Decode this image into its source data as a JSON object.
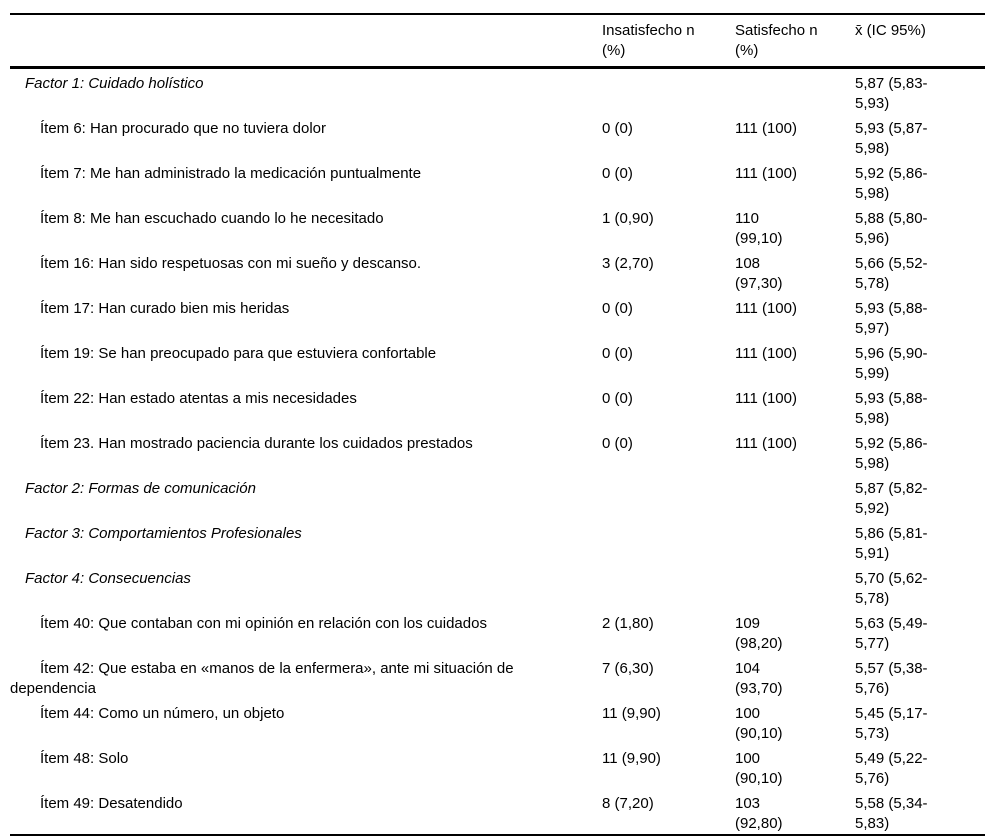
{
  "colors": {
    "background": "#ffffff",
    "text": "#000000",
    "rule": "#000000"
  },
  "table": {
    "headers": {
      "item": "",
      "insatisfecho": "Insatisfecho n\n(%)",
      "satisfecho": "Satisfecho n\n(%)",
      "media": "x̄ (IC 95%)"
    },
    "rows": [
      {
        "type": "factor",
        "label": "Factor 1: Cuidado holístico",
        "insatisfecho": "",
        "satisfecho": "",
        "media": "5,87 (5,83-\n5,93)"
      },
      {
        "type": "item",
        "label": "Ítem 6: Han procurado que no tuviera dolor",
        "insatisfecho": "0 (0)",
        "satisfecho": "111 (100)",
        "media": "5,93 (5,87-\n5,98)"
      },
      {
        "type": "item",
        "label": "Ítem 7: Me han administrado la medicación puntualmente",
        "insatisfecho": "0 (0)",
        "satisfecho": "111 (100)",
        "media": "5,92 (5,86-\n5,98)"
      },
      {
        "type": "item",
        "label": "Ítem 8: Me han escuchado cuando lo he necesitado",
        "insatisfecho": "1 (0,90)",
        "satisfecho": "110\n(99,10)",
        "media": "5,88 (5,80-\n5,96)"
      },
      {
        "type": "item",
        "label": "Ítem 16: Han sido respetuosas con mi sueño y descanso.",
        "insatisfecho": "3 (2,70)",
        "satisfecho": "108\n(97,30)",
        "media": "5,66 (5,52-\n5,78)"
      },
      {
        "type": "item",
        "label": "Ítem 17: Han curado bien mis heridas",
        "insatisfecho": "0 (0)",
        "satisfecho": "111 (100)",
        "media": "5,93 (5,88-\n5,97)"
      },
      {
        "type": "item",
        "label": "Ítem 19: Se han preocupado para que estuviera confortable",
        "insatisfecho": "0 (0)",
        "satisfecho": "111 (100)",
        "media": "5,96 (5,90-\n5,99)"
      },
      {
        "type": "item",
        "label": "Ítem 22: Han estado atentas a mis necesidades",
        "insatisfecho": "0 (0)",
        "satisfecho": "111 (100)",
        "media": "5,93 (5,88-\n5,98)"
      },
      {
        "type": "item",
        "label": "Ítem 23. Han mostrado paciencia durante los cuidados prestados",
        "insatisfecho": "0 (0)",
        "satisfecho": "111 (100)",
        "media": "5,92 (5,86-\n5,98)"
      },
      {
        "type": "factor",
        "label": "Factor 2: Formas de comunicación",
        "insatisfecho": "",
        "satisfecho": "",
        "media": "5,87 (5,82-\n5,92)"
      },
      {
        "type": "factor",
        "label": "Factor 3: Comportamientos Profesionales",
        "insatisfecho": "",
        "satisfecho": "",
        "media": "5,86 (5,81-\n5,91)"
      },
      {
        "type": "factor",
        "label": "Factor 4: Consecuencias",
        "insatisfecho": "",
        "satisfecho": "",
        "media": "5,70 (5,62-\n5,78)"
      },
      {
        "type": "item",
        "label": "Ítem 40: Que contaban con mi opinión en relación con los cuidados",
        "insatisfecho": "2 (1,80)",
        "satisfecho": "109\n(98,20)",
        "media": "5,63 (5,49-\n5,77)"
      },
      {
        "type": "item",
        "label": "Ítem 42: Que estaba en «manos de la enfermera», ante mi situación de\ndependencia",
        "insatisfecho": "7 (6,30)",
        "satisfecho": "104\n(93,70)",
        "media": "5,57 (5,38-\n5,76)"
      },
      {
        "type": "item",
        "label": "Ítem 44: Como un número, un objeto",
        "insatisfecho": "11 (9,90)",
        "satisfecho": "100\n(90,10)",
        "media": "5,45 (5,17-\n5,73)"
      },
      {
        "type": "item",
        "label": "Ítem 48: Solo",
        "insatisfecho": "11 (9,90)",
        "satisfecho": "100\n(90,10)",
        "media": "5,49 (5,22-\n5,76)"
      },
      {
        "type": "item",
        "label": "Ítem 49: Desatendido",
        "insatisfecho": "8 (7,20)",
        "satisfecho": "103\n(92,80)",
        "media": "5,58 (5,34-\n5,83)"
      }
    ]
  }
}
